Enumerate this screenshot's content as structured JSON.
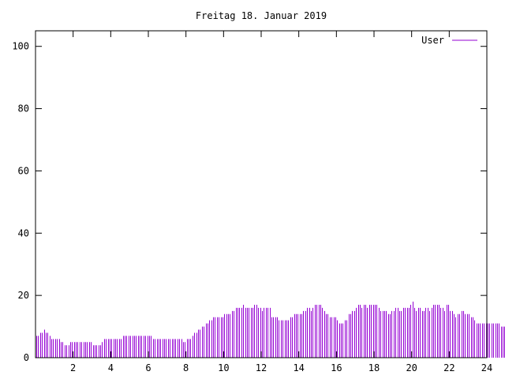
{
  "chart_data": {
    "type": "bar",
    "title": "Freitag 18. Januar 2019",
    "xlabel": "",
    "ylabel": "",
    "xlim": [
      0,
      24
    ],
    "ylim": [
      0,
      105
    ],
    "x_ticks": [
      2,
      4,
      6,
      8,
      10,
      12,
      14,
      16,
      18,
      20,
      22,
      24
    ],
    "y_ticks": [
      0,
      20,
      40,
      60,
      80,
      100
    ],
    "grid": false,
    "legend_position": "top-right",
    "series": [
      {
        "name": "User",
        "color": "#9400d3",
        "x_step_hours": 0.1,
        "values": [
          7,
          7,
          8,
          8,
          9,
          8,
          8,
          7,
          6,
          6,
          6,
          6,
          6,
          5,
          5,
          4,
          4,
          4,
          5,
          5,
          5,
          5,
          5,
          5,
          5,
          5,
          5,
          5,
          5,
          5,
          4,
          4,
          4,
          4,
          4,
          5,
          6,
          6,
          6,
          6,
          6,
          6,
          6,
          6,
          6,
          6,
          7,
          7,
          7,
          7,
          7,
          7,
          7,
          7,
          7,
          7,
          7,
          7,
          7,
          7,
          7,
          7,
          6,
          6,
          6,
          6,
          6,
          6,
          6,
          6,
          6,
          6,
          6,
          6,
          6,
          6,
          6,
          6,
          5,
          5,
          6,
          6,
          6,
          7,
          8,
          8,
          9,
          9,
          10,
          10,
          11,
          11,
          12,
          12,
          13,
          13,
          13,
          13,
          13,
          13,
          14,
          14,
          14,
          14,
          15,
          15,
          16,
          16,
          16,
          16,
          17,
          16,
          16,
          16,
          16,
          16,
          17,
          17,
          16,
          16,
          15,
          16,
          16,
          16,
          16,
          13,
          13,
          13,
          13,
          12,
          12,
          12,
          12,
          12,
          12,
          13,
          13,
          14,
          14,
          14,
          14,
          14,
          15,
          15,
          16,
          16,
          15,
          16,
          17,
          17,
          17,
          17,
          16,
          15,
          14,
          14,
          13,
          13,
          13,
          13,
          12,
          11,
          11,
          11,
          12,
          12,
          14,
          14,
          15,
          15,
          16,
          17,
          17,
          16,
          17,
          17,
          16,
          17,
          17,
          17,
          17,
          17,
          16,
          15,
          15,
          15,
          15,
          14,
          14,
          15,
          15,
          16,
          16,
          15,
          15,
          16,
          16,
          16,
          16,
          17,
          18,
          16,
          15,
          16,
          16,
          15,
          15,
          16,
          16,
          15,
          16,
          17,
          17,
          17,
          17,
          16,
          16,
          15,
          17,
          17,
          15,
          15,
          14,
          13,
          14,
          14,
          15,
          15,
          14,
          14,
          14,
          13,
          13,
          12,
          11,
          11,
          11,
          11,
          11,
          11,
          11,
          11,
          11,
          11,
          11,
          11,
          11,
          10,
          10,
          10,
          10
        ]
      }
    ]
  }
}
